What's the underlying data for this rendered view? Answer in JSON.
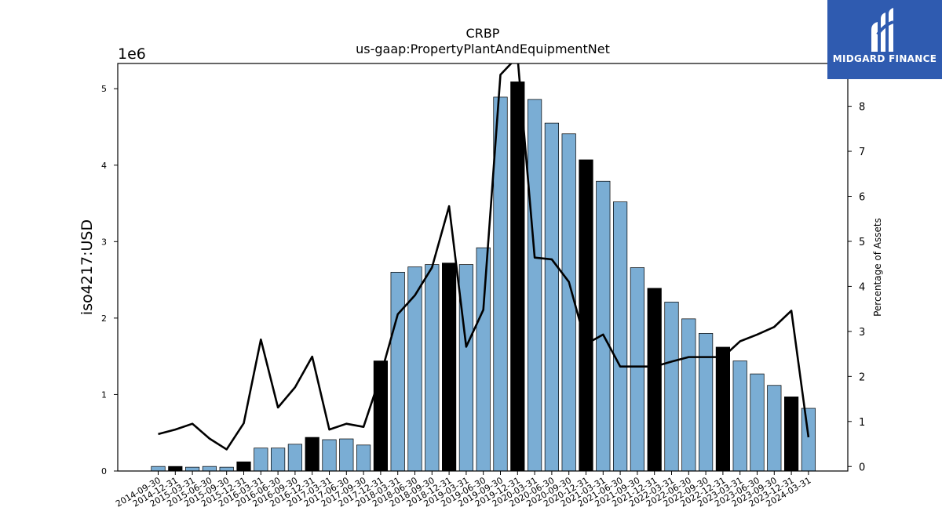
{
  "logo": {
    "brand_text": "MIDGARD FINANCE",
    "icon": "midgard-logo-icon",
    "background": "#2f5bb0"
  },
  "chart_data": {
    "type": "bar",
    "title": "CRBP",
    "subtitle": "us-gaap:PropertyPlantAndEquipmentNet",
    "ylabel": "iso4217:USD",
    "ylabel_right": "Percentage of Assets",
    "y_offset_label": "1e6",
    "ylim": [
      0,
      5.33
    ],
    "y_ticks": [
      "0",
      "1",
      "2",
      "3",
      "4",
      "5"
    ],
    "ylim_right": [
      -0.1,
      8.95
    ],
    "y_ticks_right": [
      "0",
      "1",
      "2",
      "3",
      "4",
      "5",
      "6",
      "7",
      "8"
    ],
    "grid": false,
    "bar_color": "#7aadd4",
    "highlight_color": "#000000",
    "line_color": "#000000",
    "categories": [
      "2014-09-30",
      "2014-12-31",
      "2015-03-31",
      "2015-06-30",
      "2015-09-30",
      "2015-12-31",
      "2016-03-31",
      "2016-06-30",
      "2016-09-30",
      "2016-12-31",
      "2017-03-31",
      "2017-06-30",
      "2017-09-30",
      "2017-12-31",
      "2018-03-31",
      "2018-06-30",
      "2018-09-30",
      "2018-12-31",
      "2019-03-31",
      "2019-06-30",
      "2019-09-30",
      "2019-12-31",
      "2020-03-31",
      "2020-06-30",
      "2020-09-30",
      "2020-12-31",
      "2021-03-31",
      "2021-06-30",
      "2021-09-30",
      "2021-12-31",
      "2022-03-31",
      "2022-06-30",
      "2022-09-30",
      "2022-12-31",
      "2023-03-31",
      "2023-06-30",
      "2023-09-30",
      "2023-12-31",
      "2024-03-31"
    ],
    "series": [
      {
        "values": [
          0.06,
          0.06,
          0.05,
          0.06,
          0.05,
          0.12,
          0.3,
          0.3,
          0.35,
          0.44,
          0.41,
          0.42,
          0.34,
          1.44,
          2.6,
          2.67,
          2.7,
          2.72,
          2.7,
          2.92,
          4.89,
          5.09,
          4.86,
          4.55,
          4.41,
          4.07,
          3.79,
          3.52,
          2.66,
          2.39,
          2.21,
          1.99,
          1.8,
          1.62,
          1.44,
          1.27,
          1.12,
          0.97,
          0.82
        ],
        "highlight": [
          false,
          true,
          false,
          false,
          false,
          true,
          false,
          false,
          false,
          true,
          false,
          false,
          false,
          true,
          false,
          false,
          false,
          true,
          false,
          false,
          false,
          true,
          false,
          false,
          false,
          true,
          false,
          false,
          false,
          true,
          false,
          false,
          false,
          true,
          false,
          false,
          false,
          true,
          false
        ]
      },
      {
        "name": "Percentage of Assets",
        "axis": "right",
        "values": [
          0.72,
          0.82,
          0.95,
          0.62,
          0.38,
          0.96,
          2.82,
          1.31,
          1.76,
          2.44,
          0.82,
          0.95,
          0.88,
          2.02,
          3.38,
          3.8,
          4.42,
          5.78,
          2.66,
          3.48,
          8.7,
          9.1,
          4.64,
          4.6,
          4.1,
          2.72,
          2.93,
          2.22,
          2.22,
          2.22,
          2.33,
          2.43,
          2.43,
          2.43,
          2.78,
          2.93,
          3.1,
          3.46,
          0.65
        ]
      }
    ]
  }
}
